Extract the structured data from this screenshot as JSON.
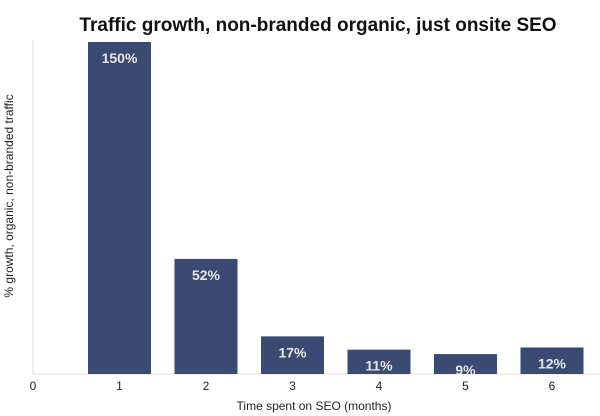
{
  "chart_data": {
    "type": "bar",
    "title": "Traffic growth, non-branded organic, just onsite SEO",
    "xlabel": "Time spent on SEO (months)",
    "ylabel": "% growth, organic, non-branded traffic",
    "x_ticks": [
      "0",
      "1",
      "2",
      "3",
      "4",
      "5",
      "6"
    ],
    "categories": [
      "1",
      "2",
      "3",
      "4",
      "5",
      "6"
    ],
    "values": [
      150,
      52,
      17,
      11,
      9,
      12
    ],
    "data_labels": [
      "150%",
      "52%",
      "17%",
      "11%",
      "9%",
      "12%"
    ],
    "ylim": [
      0,
      150
    ],
    "grid": false,
    "legend": "none"
  },
  "colors": {
    "bar": "#3b4a73",
    "axis": "#e8d9d4",
    "label_text": "#e6e6e6"
  }
}
